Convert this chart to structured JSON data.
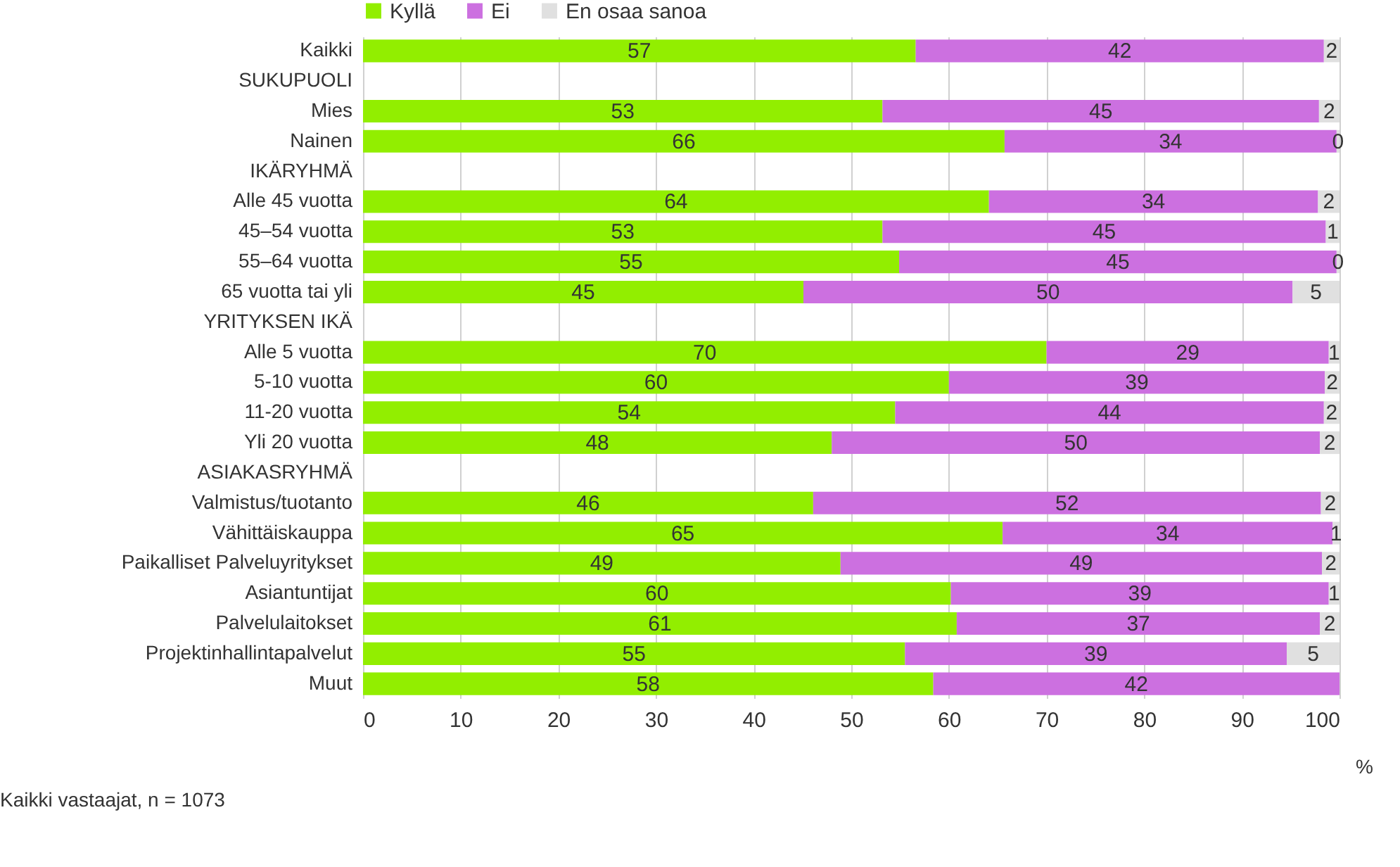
{
  "chart_data": {
    "type": "bar",
    "orientation": "horizontal",
    "stacked": true,
    "categories": [
      "Kaikki",
      "SUKUPUOLI",
      "Mies",
      "Nainen",
      "IKÄRYHMÄ",
      "Alle 45 vuotta",
      "45–54 vuotta",
      "55–64 vuotta",
      "65 vuotta tai yli",
      "YRITYKSEN IKÄ",
      "Alle 5 vuotta",
      "5-10 vuotta",
      "11-20 vuotta",
      "Yli 20 vuotta",
      "ASIAKASRYHMÄ",
      "Valmistus/tuotanto",
      "Vähittäiskauppa",
      "Paikalliset Palveluyritykset",
      "Asiantuntijat",
      "Palvelulaitokset",
      "Projektinhallintapalvelut",
      "Muut"
    ],
    "series": [
      {
        "name": "Kyllä",
        "color": "#92ee00",
        "values": [
          56.6,
          null,
          53.2,
          65.7,
          null,
          64.1,
          53.2,
          54.9,
          45.1,
          null,
          70.0,
          60.0,
          54.5,
          48.0,
          null,
          46.1,
          65.5,
          48.9,
          60.2,
          60.8,
          55.5,
          58.4
        ],
        "value_labels": [
          "57",
          null,
          "53",
          "66",
          null,
          "64",
          "53",
          "55",
          "45",
          null,
          "70",
          "60",
          "54",
          "48",
          null,
          "46",
          "65",
          "49",
          "60",
          "61",
          "55",
          "58"
        ]
      },
      {
        "name": "Ei",
        "color": "#cc70e0",
        "values": [
          41.8,
          null,
          44.7,
          34.0,
          null,
          33.7,
          45.4,
          44.8,
          50.1,
          null,
          28.9,
          38.5,
          43.9,
          50.0,
          null,
          52.0,
          33.8,
          49.3,
          38.7,
          37.2,
          39.1,
          41.6
        ],
        "value_labels": [
          "42",
          null,
          "45",
          "34",
          null,
          "34",
          "45",
          "45",
          "50",
          null,
          "29",
          "39",
          "44",
          "50",
          null,
          "52",
          "34",
          "49",
          "39",
          "37",
          "39",
          "42"
        ]
      },
      {
        "name": "En osaa sanoa",
        "color": "#e0e0e0",
        "values": [
          1.6,
          null,
          2.1,
          0.3,
          null,
          2.2,
          1.4,
          0.3,
          4.8,
          null,
          1.1,
          1.5,
          1.6,
          2.0,
          null,
          1.9,
          0.7,
          1.8,
          1.1,
          2.0,
          5.4,
          0
        ],
        "value_labels": [
          "2",
          null,
          "2",
          "0",
          null,
          "2",
          "1",
          "0",
          "5",
          null,
          "1",
          "2",
          "2",
          "2",
          null,
          "2",
          "1",
          "2",
          "1",
          "2",
          "5",
          null
        ]
      }
    ],
    "xlim": [
      0,
      100
    ],
    "xticks": [
      0,
      10,
      20,
      30,
      40,
      50,
      60,
      70,
      80,
      90,
      100
    ],
    "xlabel": "%",
    "grid": "x",
    "legend": "top",
    "annotations": [
      "Kaikki vastaajat, n = 1073"
    ]
  }
}
